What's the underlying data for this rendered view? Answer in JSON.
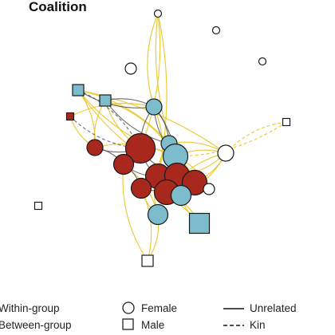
{
  "title": "Coalition",
  "legend": {
    "within_group": "Within-group",
    "between_group": "Between-group",
    "female": "Female",
    "male": "Male",
    "unrelated": "Unrelated",
    "kin": "Kin"
  },
  "colors": {
    "within_group_edge": "#555555",
    "between_group_edge": "#e8c62a",
    "red_node": "#a8281e",
    "blue_node": "#7dbccc",
    "white_node": "#ffffff"
  },
  "nodes": [
    {
      "id": "a",
      "shape": "circle",
      "color": "white",
      "size": 1
    },
    {
      "id": "b",
      "shape": "circle",
      "color": "white",
      "size": 1
    },
    {
      "id": "c",
      "shape": "circle",
      "color": "white",
      "size": 1
    },
    {
      "id": "d",
      "shape": "circle",
      "color": "white",
      "size": 2
    },
    {
      "id": "e",
      "shape": "square",
      "color": "blue",
      "size": 2
    },
    {
      "id": "f",
      "shape": "square",
      "color": "blue",
      "size": 2
    },
    {
      "id": "g",
      "shape": "square",
      "color": "red",
      "size": 1
    },
    {
      "id": "h",
      "shape": "circle",
      "color": "blue",
      "size": 3
    },
    {
      "id": "i",
      "shape": "circle",
      "color": "red",
      "size": 3
    },
    {
      "id": "j",
      "shape": "circle",
      "color": "red",
      "size": 6
    },
    {
      "id": "k",
      "shape": "circle",
      "color": "blue",
      "size": 3
    },
    {
      "id": "l",
      "shape": "circle",
      "color": "blue",
      "size": 5
    },
    {
      "id": "m",
      "shape": "circle",
      "color": "white",
      "size": 3
    },
    {
      "id": "n",
      "shape": "square",
      "color": "white",
      "size": 1
    },
    {
      "id": "o",
      "shape": "circle",
      "color": "red",
      "size": 4
    },
    {
      "id": "p",
      "shape": "circle",
      "color": "red",
      "size": 5
    },
    {
      "id": "q",
      "shape": "circle",
      "color": "red",
      "size": 5
    },
    {
      "id": "r",
      "shape": "circle",
      "color": "red",
      "size": 5
    },
    {
      "id": "s",
      "shape": "circle",
      "color": "red",
      "size": 4
    },
    {
      "id": "t",
      "shape": "circle",
      "color": "red",
      "size": 5
    },
    {
      "id": "u",
      "shape": "circle",
      "color": "blue",
      "size": 4
    },
    {
      "id": "v",
      "shape": "circle",
      "color": "white",
      "size": 2
    },
    {
      "id": "w",
      "shape": "square",
      "color": "white",
      "size": 1
    },
    {
      "id": "x",
      "shape": "circle",
      "color": "blue",
      "size": 4
    },
    {
      "id": "y",
      "shape": "square",
      "color": "blue",
      "size": 4
    },
    {
      "id": "z",
      "shape": "square",
      "color": "white",
      "size": 2
    }
  ],
  "edges": [
    {
      "from": "i",
      "to": "j",
      "type": "within",
      "kin": false
    },
    {
      "from": "j",
      "to": "o",
      "type": "within",
      "kin": false
    },
    {
      "from": "j",
      "to": "p",
      "type": "within",
      "kin": false
    },
    {
      "from": "j",
      "to": "h",
      "type": "within",
      "kin": false
    },
    {
      "from": "h",
      "to": "l",
      "type": "within",
      "kin": false
    },
    {
      "from": "h",
      "to": "k",
      "type": "within",
      "kin": false
    },
    {
      "from": "o",
      "to": "p",
      "type": "within",
      "kin": false
    },
    {
      "from": "p",
      "to": "q",
      "type": "within",
      "kin": false
    },
    {
      "from": "q",
      "to": "t",
      "type": "within",
      "kin": false
    },
    {
      "from": "r",
      "to": "s",
      "type": "within",
      "kin": false
    },
    {
      "from": "p",
      "to": "s",
      "type": "within",
      "kin": false
    },
    {
      "from": "o",
      "to": "s",
      "type": "within",
      "kin": false
    },
    {
      "from": "j",
      "to": "q",
      "type": "within",
      "kin": false
    },
    {
      "from": "i",
      "to": "o",
      "type": "within",
      "kin": false
    },
    {
      "from": "e",
      "to": "h",
      "type": "within",
      "kin": false
    },
    {
      "from": "f",
      "to": "h",
      "type": "within",
      "kin": false
    },
    {
      "from": "f",
      "to": "k",
      "type": "within",
      "kin": false
    },
    {
      "from": "e",
      "to": "j",
      "type": "within",
      "kin": true
    },
    {
      "from": "g",
      "to": "j",
      "type": "within",
      "kin": true
    },
    {
      "from": "h",
      "to": "q",
      "type": "within",
      "kin": false
    },
    {
      "from": "a",
      "to": "h",
      "type": "between",
      "kin": false
    },
    {
      "from": "a",
      "to": "j",
      "type": "between",
      "kin": false
    },
    {
      "from": "a",
      "to": "l",
      "type": "between",
      "kin": false
    },
    {
      "from": "a",
      "to": "p",
      "type": "between",
      "kin": false
    },
    {
      "from": "e",
      "to": "l",
      "type": "between",
      "kin": false
    },
    {
      "from": "e",
      "to": "k",
      "type": "between",
      "kin": false
    },
    {
      "from": "e",
      "to": "q",
      "type": "between",
      "kin": false
    },
    {
      "from": "e",
      "to": "i",
      "type": "between",
      "kin": false
    },
    {
      "from": "f",
      "to": "i",
      "type": "between",
      "kin": false
    },
    {
      "from": "f",
      "to": "l",
      "type": "between",
      "kin": false
    },
    {
      "from": "g",
      "to": "i",
      "type": "between",
      "kin": false
    },
    {
      "from": "g",
      "to": "h",
      "type": "between",
      "kin": false
    },
    {
      "from": "m",
      "to": "l",
      "type": "between",
      "kin": false
    },
    {
      "from": "m",
      "to": "r",
      "type": "between",
      "kin": false
    },
    {
      "from": "m",
      "to": "t",
      "type": "between",
      "kin": false
    },
    {
      "from": "m",
      "to": "u",
      "type": "between",
      "kin": false
    },
    {
      "from": "m",
      "to": "k",
      "type": "between",
      "kin": false
    },
    {
      "from": "m",
      "to": "q",
      "type": "between",
      "kin": false
    },
    {
      "from": "n",
      "to": "m",
      "type": "between",
      "kin": true
    },
    {
      "from": "n",
      "to": "l",
      "type": "between",
      "kin": true
    },
    {
      "from": "v",
      "to": "u",
      "type": "between",
      "kin": false
    },
    {
      "from": "v",
      "to": "t",
      "type": "between",
      "kin": false
    },
    {
      "from": "v",
      "to": "l",
      "type": "between",
      "kin": false
    },
    {
      "from": "v",
      "to": "r",
      "type": "between",
      "kin": false
    },
    {
      "from": "y",
      "to": "t",
      "type": "between",
      "kin": false
    },
    {
      "from": "y",
      "to": "u",
      "type": "between",
      "kin": false
    },
    {
      "from": "y",
      "to": "s",
      "type": "between",
      "kin": false
    },
    {
      "from": "x",
      "to": "s",
      "type": "between",
      "kin": false
    },
    {
      "from": "x",
      "to": "o",
      "type": "between",
      "kin": false
    },
    {
      "from": "x",
      "to": "p",
      "type": "between",
      "kin": false
    },
    {
      "from": "z",
      "to": "x",
      "type": "between",
      "kin": false
    },
    {
      "from": "z",
      "to": "o",
      "type": "between",
      "kin": false
    },
    {
      "from": "z",
      "to": "s",
      "type": "between",
      "kin": false
    },
    {
      "from": "i",
      "to": "l",
      "type": "between",
      "kin": false
    },
    {
      "from": "k",
      "to": "p",
      "type": "between",
      "kin": false
    },
    {
      "from": "l",
      "to": "r",
      "type": "between",
      "kin": false
    },
    {
      "from": "l",
      "to": "q",
      "type": "between",
      "kin": false
    },
    {
      "from": "u",
      "to": "r",
      "type": "between",
      "kin": false
    },
    {
      "from": "u",
      "to": "t",
      "type": "between",
      "kin": false
    },
    {
      "from": "h",
      "to": "p",
      "type": "between",
      "kin": false
    },
    {
      "from": "f",
      "to": "j",
      "type": "between",
      "kin": false
    },
    {
      "from": "e",
      "to": "m",
      "type": "between",
      "kin": false
    }
  ]
}
